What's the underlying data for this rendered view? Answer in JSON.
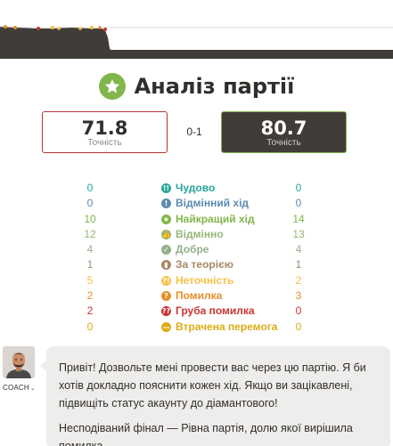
{
  "header": {
    "title": "Аналіз партії"
  },
  "scores": {
    "white_value": "71.8",
    "white_label": "Точність",
    "result": "0-1",
    "black_value": "80.7",
    "black_label": "Точність"
  },
  "stats": [
    {
      "label": "Чудово",
      "white": "0",
      "black": "0",
      "color": "#26a69a",
      "icon": "brilliant-icon",
      "glyph": "!!"
    },
    {
      "label": "Відмінний хід",
      "white": "0",
      "black": "0",
      "color": "#5c8bb0",
      "icon": "great-move-icon",
      "glyph": "!"
    },
    {
      "label": "Найкращий хід",
      "white": "10",
      "black": "14",
      "color": "#81b64c",
      "icon": "best-move-icon",
      "glyph": "★"
    },
    {
      "label": "Відмінно",
      "white": "12",
      "black": "13",
      "color": "#95b776",
      "icon": "excellent-icon",
      "glyph": "👍"
    },
    {
      "label": "Добре",
      "white": "4",
      "black": "4",
      "color": "#95af8a",
      "icon": "good-icon",
      "glyph": "✓"
    },
    {
      "label": "За теорією",
      "white": "1",
      "black": "1",
      "color": "#a88865",
      "icon": "book-icon",
      "glyph": "▮"
    },
    {
      "label": "Неточність",
      "white": "5",
      "black": "2",
      "color": "#f7c045",
      "icon": "inaccuracy-icon",
      "glyph": "?!"
    },
    {
      "label": "Помилка",
      "white": "2",
      "black": "3",
      "color": "#e58f2a",
      "icon": "mistake-icon",
      "glyph": "?"
    },
    {
      "label": "Груба помилка",
      "white": "2",
      "black": "0",
      "color": "#ca3431",
      "icon": "blunder-icon",
      "glyph": "??"
    },
    {
      "label": "Втрачена перемога",
      "white": "0",
      "black": "0",
      "color": "#dbac16",
      "icon": "missed-win-icon",
      "glyph": "—"
    }
  ],
  "coach": {
    "label": "COACH",
    "message_1": "Привіт! Дозвольте мені провести вас через цю партію. Я би хотів докладно пояснити кожен хід. Якщо ви зацікавлені, підвищіть статус акаунту до діамантового!",
    "message_2": "Несподіваний фінал — Рівна партія, долю якої вирішила помилка."
  }
}
